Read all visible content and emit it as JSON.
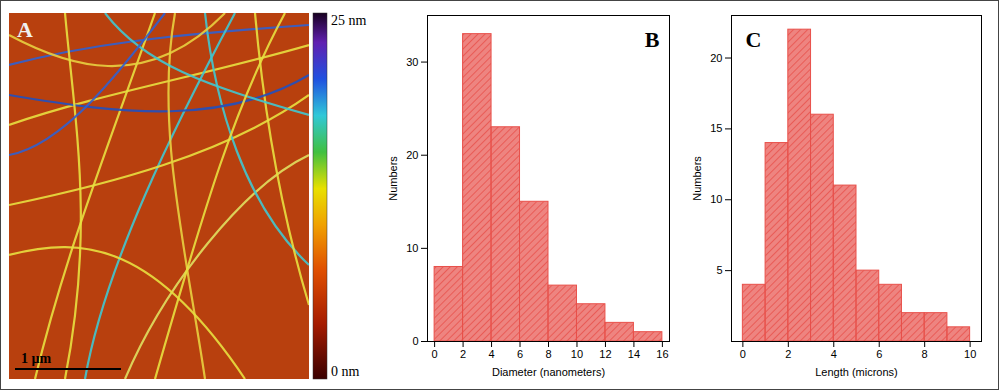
{
  "chart_data": [
    {
      "type": "image",
      "title": "A",
      "colorbar": {
        "range": [
          0,
          25
        ],
        "ticks": [
          {
            "value": 25,
            "label": "25 nm"
          },
          {
            "value": 0,
            "label": "0 nm"
          }
        ]
      },
      "scale_bar": "1 µm"
    },
    {
      "type": "histogram",
      "title": "B",
      "x_label": "Diameter (nanometers)",
      "y_label": "Numbers",
      "bins": [
        0,
        2,
        4,
        6,
        8,
        10,
        12,
        14,
        16
      ],
      "values": [
        8,
        33,
        23,
        15,
        6,
        4,
        2,
        1
      ],
      "color": "#e8504a",
      "xlim": [
        -0.5,
        16.5
      ],
      "xticks": [
        0,
        2,
        4,
        6,
        8,
        10,
        12,
        14,
        16
      ],
      "ylim": [
        0,
        35
      ],
      "yticks": [
        0,
        10,
        20,
        30
      ]
    },
    {
      "type": "histogram",
      "title": "C",
      "x_label": "Length (microns)",
      "y_label": "Numbers",
      "bins": [
        0,
        1,
        2,
        3,
        4,
        5,
        6,
        7,
        8,
        9,
        10
      ],
      "values": [
        4,
        14,
        22,
        16,
        11,
        5,
        4,
        2,
        2,
        1
      ],
      "color": "#e8504a",
      "xlim": [
        -0.5,
        10.5
      ],
      "xticks": [
        0,
        2,
        4,
        6,
        8,
        10
      ],
      "ylim": [
        0,
        23
      ],
      "yticks": [
        5,
        10,
        15,
        20
      ]
    }
  ]
}
